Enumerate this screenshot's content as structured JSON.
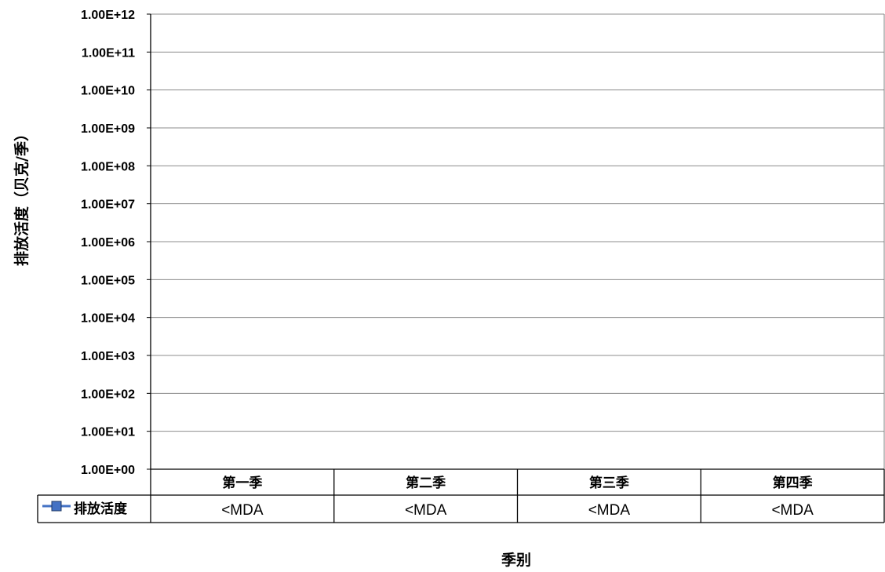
{
  "chart_data": {
    "type": "line",
    "title": "",
    "xlabel": "季别",
    "ylabel": "排放活度（贝克/季）",
    "y_scale": "log",
    "ylim": [
      1,
      1000000000000
    ],
    "y_ticks": [
      "1.00E+00",
      "1.00E+01",
      "1.00E+02",
      "1.00E+03",
      "1.00E+04",
      "1.00E+05",
      "1.00E+06",
      "1.00E+07",
      "1.00E+08",
      "1.00E+09",
      "1.00E+10",
      "1.00E+11",
      "1.00E+12"
    ],
    "grid": true,
    "categories": [
      "第一季",
      "第二季",
      "第三季",
      "第四季"
    ],
    "series": [
      {
        "name": "排放活度",
        "color": "#4472C4",
        "marker": "square",
        "values": [
          null,
          null,
          null,
          null
        ],
        "table_values": [
          "<MDA",
          "<MDA",
          "<MDA",
          "<MDA"
        ]
      }
    ],
    "legend": "data-table"
  }
}
